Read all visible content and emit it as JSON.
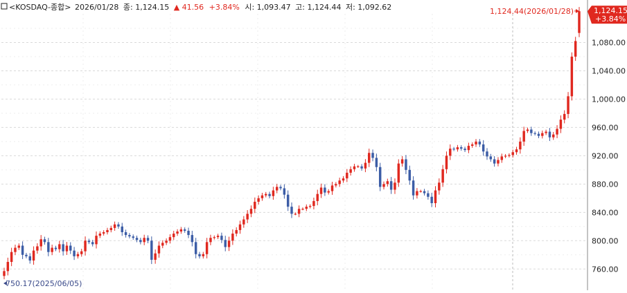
{
  "header": {
    "icon": "square-icon",
    "instrument": "<KOSDAQ-종합>",
    "date": "2026/01/28",
    "close_label": "종:",
    "close": "1,124.15",
    "change_arrow": "▲",
    "change": "41.56",
    "change_pct": "+3.84%",
    "open_label": "시:",
    "open": "1,093.47",
    "high_label": "고:",
    "high": "1,124.44",
    "low_label": "저:",
    "low": "1,092.62"
  },
  "colors": {
    "up": "#e0281f",
    "down": "#3c5da6",
    "grid": "#d9d9d9",
    "axis_text": "#222222",
    "badge": "#e0281f"
  },
  "chart_data": {
    "type": "candlestick",
    "ylim": [
      730,
      1140
    ],
    "y_ticks": [
      "760.00",
      "800.00",
      "840.00",
      "880.00",
      "920.00",
      "960.00",
      "1,000.00",
      "1,040.00",
      "1,080.00"
    ],
    "grid": true,
    "max_annotation": "1,124.44(2026/01/28)",
    "min_annotation": "750.17(2025/06/05)",
    "last_price_badge": [
      "1,124.15",
      "+3.84%"
    ],
    "closes": [
      757,
      770,
      784,
      790,
      793,
      780,
      778,
      772,
      786,
      792,
      802,
      798,
      784,
      790,
      788,
      795,
      785,
      793,
      786,
      778,
      781,
      785,
      800,
      798,
      795,
      807,
      810,
      812,
      815,
      818,
      823,
      820,
      812,
      808,
      806,
      804,
      801,
      798,
      804,
      800,
      773,
      782,
      793,
      797,
      800,
      805,
      810,
      813,
      816,
      814,
      808,
      798,
      781,
      778,
      781,
      798,
      804,
      805,
      807,
      801,
      791,
      800,
      810,
      815,
      823,
      830,
      838,
      845,
      855,
      860,
      864,
      866,
      863,
      871,
      876,
      874,
      865,
      848,
      838,
      838,
      845,
      845,
      848,
      849,
      856,
      866,
      875,
      868,
      870,
      878,
      880,
      885,
      888,
      896,
      901,
      905,
      905,
      902,
      910,
      924,
      917,
      904,
      876,
      880,
      884,
      872,
      882,
      909,
      915,
      900,
      885,
      864,
      870,
      870,
      867,
      862,
      853,
      871,
      882,
      901,
      920,
      930,
      929,
      932,
      930,
      928,
      934,
      936,
      940,
      936,
      926,
      919,
      915,
      909,
      914,
      919,
      920,
      921,
      925,
      929,
      940,
      955,
      957,
      952,
      951,
      948,
      952,
      954,
      946,
      950,
      958,
      971,
      979,
      1004,
      1060,
      1082,
      1124.15
    ],
    "candles": [
      [
        750.17,
        757
      ],
      [
        757,
        770
      ],
      [
        770,
        784
      ],
      [
        784,
        790
      ],
      [
        790,
        793
      ],
      [
        793,
        780
      ],
      [
        780,
        778
      ],
      [
        778,
        772
      ],
      [
        772,
        786
      ],
      [
        786,
        792
      ],
      [
        792,
        802
      ],
      [
        802,
        798
      ],
      [
        798,
        784
      ],
      [
        784,
        790
      ],
      [
        790,
        788
      ],
      [
        788,
        795
      ],
      [
        795,
        785
      ],
      [
        785,
        793
      ],
      [
        793,
        786
      ],
      [
        786,
        778
      ],
      [
        778,
        781
      ],
      [
        781,
        785
      ],
      [
        785,
        800
      ],
      [
        800,
        798
      ],
      [
        798,
        795
      ],
      [
        795,
        807
      ],
      [
        807,
        810
      ],
      [
        810,
        812
      ],
      [
        812,
        815
      ],
      [
        815,
        818
      ],
      [
        818,
        823
      ],
      [
        823,
        820
      ],
      [
        820,
        812
      ],
      [
        812,
        808
      ],
      [
        808,
        806
      ],
      [
        806,
        804
      ],
      [
        804,
        801
      ],
      [
        801,
        798
      ],
      [
        798,
        804
      ],
      [
        804,
        800
      ],
      [
        800,
        773
      ],
      [
        773,
        782
      ],
      [
        782,
        793
      ],
      [
        793,
        797
      ],
      [
        797,
        800
      ],
      [
        800,
        805
      ],
      [
        805,
        810
      ],
      [
        810,
        813
      ],
      [
        813,
        816
      ],
      [
        816,
        814
      ],
      [
        814,
        808
      ],
      [
        808,
        798
      ],
      [
        798,
        781
      ],
      [
        781,
        778
      ],
      [
        778,
        781
      ],
      [
        781,
        798
      ],
      [
        798,
        804
      ],
      [
        804,
        805
      ],
      [
        805,
        807
      ],
      [
        807,
        801
      ],
      [
        801,
        791
      ],
      [
        791,
        800
      ],
      [
        800,
        810
      ],
      [
        810,
        815
      ],
      [
        815,
        823
      ],
      [
        823,
        830
      ],
      [
        830,
        838
      ],
      [
        838,
        845
      ],
      [
        845,
        855
      ],
      [
        855,
        860
      ],
      [
        860,
        864
      ],
      [
        864,
        866
      ],
      [
        866,
        863
      ],
      [
        863,
        871
      ],
      [
        871,
        876
      ],
      [
        876,
        874
      ],
      [
        874,
        865
      ],
      [
        865,
        848
      ],
      [
        848,
        838
      ],
      [
        838,
        838
      ],
      [
        838,
        845
      ],
      [
        845,
        845
      ],
      [
        845,
        848
      ],
      [
        848,
        849
      ],
      [
        849,
        856
      ],
      [
        856,
        866
      ],
      [
        866,
        875
      ],
      [
        875,
        868
      ],
      [
        868,
        870
      ],
      [
        870,
        878
      ],
      [
        878,
        880
      ],
      [
        880,
        885
      ],
      [
        885,
        888
      ],
      [
        888,
        896
      ],
      [
        896,
        901
      ],
      [
        901,
        905
      ],
      [
        905,
        905
      ],
      [
        905,
        902
      ],
      [
        902,
        910
      ],
      [
        910,
        924
      ],
      [
        924,
        917
      ],
      [
        917,
        904
      ],
      [
        904,
        876
      ],
      [
        876,
        880
      ],
      [
        880,
        884
      ],
      [
        884,
        872
      ],
      [
        872,
        882
      ],
      [
        882,
        909
      ],
      [
        909,
        915
      ],
      [
        915,
        900
      ],
      [
        900,
        885
      ],
      [
        885,
        864
      ],
      [
        864,
        870
      ],
      [
        870,
        870
      ],
      [
        870,
        867
      ],
      [
        867,
        862
      ],
      [
        862,
        853
      ],
      [
        853,
        871
      ],
      [
        871,
        882
      ],
      [
        882,
        901
      ],
      [
        901,
        920
      ],
      [
        920,
        930
      ],
      [
        930,
        929
      ],
      [
        929,
        932
      ],
      [
        932,
        930
      ],
      [
        930,
        928
      ],
      [
        928,
        934
      ],
      [
        934,
        936
      ],
      [
        936,
        940
      ],
      [
        940,
        936
      ],
      [
        936,
        926
      ],
      [
        926,
        919
      ],
      [
        919,
        915
      ],
      [
        915,
        909
      ],
      [
        909,
        914
      ],
      [
        914,
        919
      ],
      [
        919,
        920
      ],
      [
        920,
        921
      ],
      [
        921,
        925
      ],
      [
        925,
        929
      ],
      [
        929,
        940
      ],
      [
        940,
        955
      ],
      [
        955,
        957
      ],
      [
        957,
        952
      ],
      [
        952,
        951
      ],
      [
        951,
        948
      ],
      [
        948,
        952
      ],
      [
        952,
        954
      ],
      [
        954,
        946
      ],
      [
        946,
        950
      ],
      [
        950,
        958
      ],
      [
        958,
        971
      ],
      [
        971,
        979
      ],
      [
        979,
        1004
      ],
      [
        1004,
        1060
      ],
      [
        1060,
        1082
      ],
      [
        1093.47,
        1124.15
      ]
    ]
  }
}
